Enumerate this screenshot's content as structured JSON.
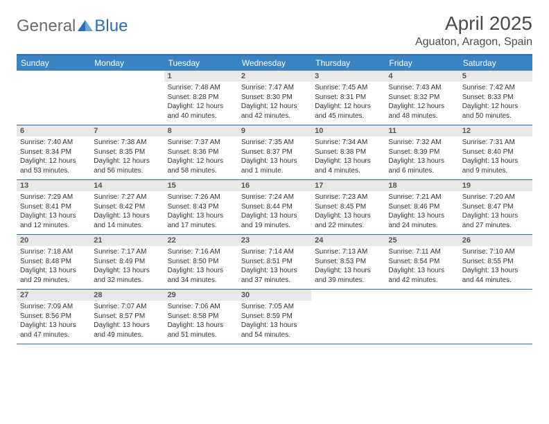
{
  "logo": {
    "textGeneral": "General",
    "textBlue": "Blue"
  },
  "title": "April 2025",
  "location": "Aguaton, Aragon, Spain",
  "colors": {
    "headerBg": "#3b84c4",
    "headerBorder": "#2a6db8",
    "dayBarBg": "#e8e8e8",
    "text": "#333333"
  },
  "weekdays": [
    "Sunday",
    "Monday",
    "Tuesday",
    "Wednesday",
    "Thursday",
    "Friday",
    "Saturday"
  ],
  "weeks": [
    [
      null,
      null,
      {
        "n": "1",
        "sr": "7:48 AM",
        "ss": "8:28 PM",
        "dl": "12 hours and 40 minutes."
      },
      {
        "n": "2",
        "sr": "7:47 AM",
        "ss": "8:30 PM",
        "dl": "12 hours and 42 minutes."
      },
      {
        "n": "3",
        "sr": "7:45 AM",
        "ss": "8:31 PM",
        "dl": "12 hours and 45 minutes."
      },
      {
        "n": "4",
        "sr": "7:43 AM",
        "ss": "8:32 PM",
        "dl": "12 hours and 48 minutes."
      },
      {
        "n": "5",
        "sr": "7:42 AM",
        "ss": "8:33 PM",
        "dl": "12 hours and 50 minutes."
      }
    ],
    [
      {
        "n": "6",
        "sr": "7:40 AM",
        "ss": "8:34 PM",
        "dl": "12 hours and 53 minutes."
      },
      {
        "n": "7",
        "sr": "7:38 AM",
        "ss": "8:35 PM",
        "dl": "12 hours and 56 minutes."
      },
      {
        "n": "8",
        "sr": "7:37 AM",
        "ss": "8:36 PM",
        "dl": "12 hours and 58 minutes."
      },
      {
        "n": "9",
        "sr": "7:35 AM",
        "ss": "8:37 PM",
        "dl": "13 hours and 1 minute."
      },
      {
        "n": "10",
        "sr": "7:34 AM",
        "ss": "8:38 PM",
        "dl": "13 hours and 4 minutes."
      },
      {
        "n": "11",
        "sr": "7:32 AM",
        "ss": "8:39 PM",
        "dl": "13 hours and 6 minutes."
      },
      {
        "n": "12",
        "sr": "7:31 AM",
        "ss": "8:40 PM",
        "dl": "13 hours and 9 minutes."
      }
    ],
    [
      {
        "n": "13",
        "sr": "7:29 AM",
        "ss": "8:41 PM",
        "dl": "13 hours and 12 minutes."
      },
      {
        "n": "14",
        "sr": "7:27 AM",
        "ss": "8:42 PM",
        "dl": "13 hours and 14 minutes."
      },
      {
        "n": "15",
        "sr": "7:26 AM",
        "ss": "8:43 PM",
        "dl": "13 hours and 17 minutes."
      },
      {
        "n": "16",
        "sr": "7:24 AM",
        "ss": "8:44 PM",
        "dl": "13 hours and 19 minutes."
      },
      {
        "n": "17",
        "sr": "7:23 AM",
        "ss": "8:45 PM",
        "dl": "13 hours and 22 minutes."
      },
      {
        "n": "18",
        "sr": "7:21 AM",
        "ss": "8:46 PM",
        "dl": "13 hours and 24 minutes."
      },
      {
        "n": "19",
        "sr": "7:20 AM",
        "ss": "8:47 PM",
        "dl": "13 hours and 27 minutes."
      }
    ],
    [
      {
        "n": "20",
        "sr": "7:18 AM",
        "ss": "8:48 PM",
        "dl": "13 hours and 29 minutes."
      },
      {
        "n": "21",
        "sr": "7:17 AM",
        "ss": "8:49 PM",
        "dl": "13 hours and 32 minutes."
      },
      {
        "n": "22",
        "sr": "7:16 AM",
        "ss": "8:50 PM",
        "dl": "13 hours and 34 minutes."
      },
      {
        "n": "23",
        "sr": "7:14 AM",
        "ss": "8:51 PM",
        "dl": "13 hours and 37 minutes."
      },
      {
        "n": "24",
        "sr": "7:13 AM",
        "ss": "8:53 PM",
        "dl": "13 hours and 39 minutes."
      },
      {
        "n": "25",
        "sr": "7:11 AM",
        "ss": "8:54 PM",
        "dl": "13 hours and 42 minutes."
      },
      {
        "n": "26",
        "sr": "7:10 AM",
        "ss": "8:55 PM",
        "dl": "13 hours and 44 minutes."
      }
    ],
    [
      {
        "n": "27",
        "sr": "7:09 AM",
        "ss": "8:56 PM",
        "dl": "13 hours and 47 minutes."
      },
      {
        "n": "28",
        "sr": "7:07 AM",
        "ss": "8:57 PM",
        "dl": "13 hours and 49 minutes."
      },
      {
        "n": "29",
        "sr": "7:06 AM",
        "ss": "8:58 PM",
        "dl": "13 hours and 51 minutes."
      },
      {
        "n": "30",
        "sr": "7:05 AM",
        "ss": "8:59 PM",
        "dl": "13 hours and 54 minutes."
      },
      null,
      null,
      null
    ]
  ],
  "labels": {
    "sunrise": "Sunrise: ",
    "sunset": "Sunset: ",
    "daylight": "Daylight: "
  }
}
